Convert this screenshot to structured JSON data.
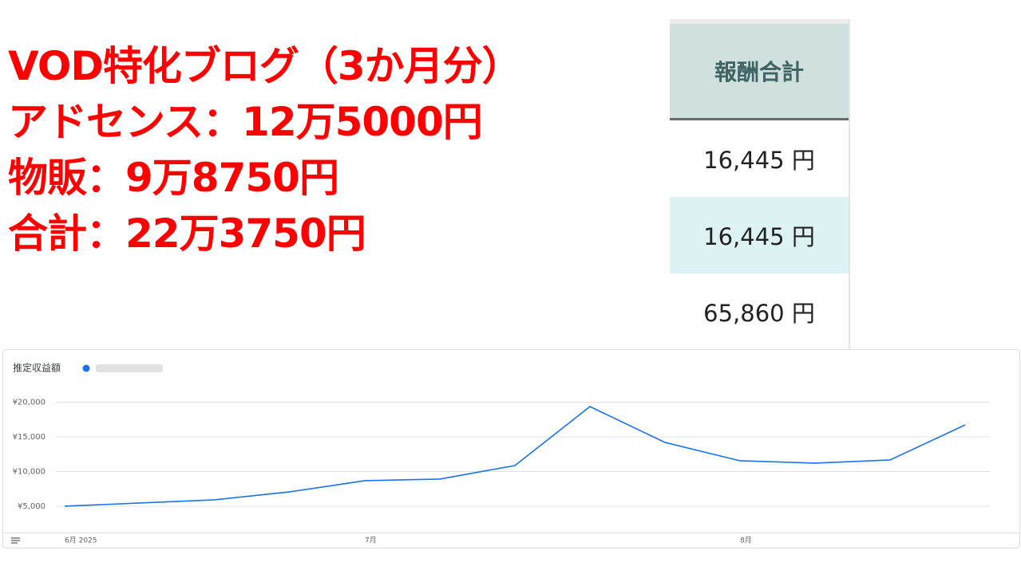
{
  "headline": {
    "lines": [
      "VOD特化ブログ（3か月分）",
      "アドセンス：12万5000円",
      "物販：9万8750円",
      "合計：22万3750円"
    ]
  },
  "table": {
    "header": "報酬合計",
    "rows": [
      "16,445 円",
      "16,445 円",
      "65,860 円"
    ]
  },
  "chart_data": {
    "type": "line",
    "title": "推定収益額",
    "categories": [
      "6月 2025",
      null,
      null,
      null,
      "7月",
      null,
      null,
      null,
      null,
      "8月",
      null,
      null,
      null
    ],
    "series": [
      {
        "color": "#1a73e8",
        "values": [
          5000,
          5460,
          5920,
          7070,
          8680,
          8910,
          10860,
          19370,
          14200,
          11550,
          11210,
          11670,
          16720
        ]
      }
    ],
    "ylim": [
      1200,
      21000
    ],
    "yticks": [
      {
        "value": 5000,
        "label": "¥5,000"
      },
      {
        "value": 10000,
        "label": "¥10,000"
      },
      {
        "value": 15000,
        "label": "¥15,000"
      },
      {
        "value": 20000,
        "label": "¥20,000"
      }
    ],
    "grid": true
  }
}
